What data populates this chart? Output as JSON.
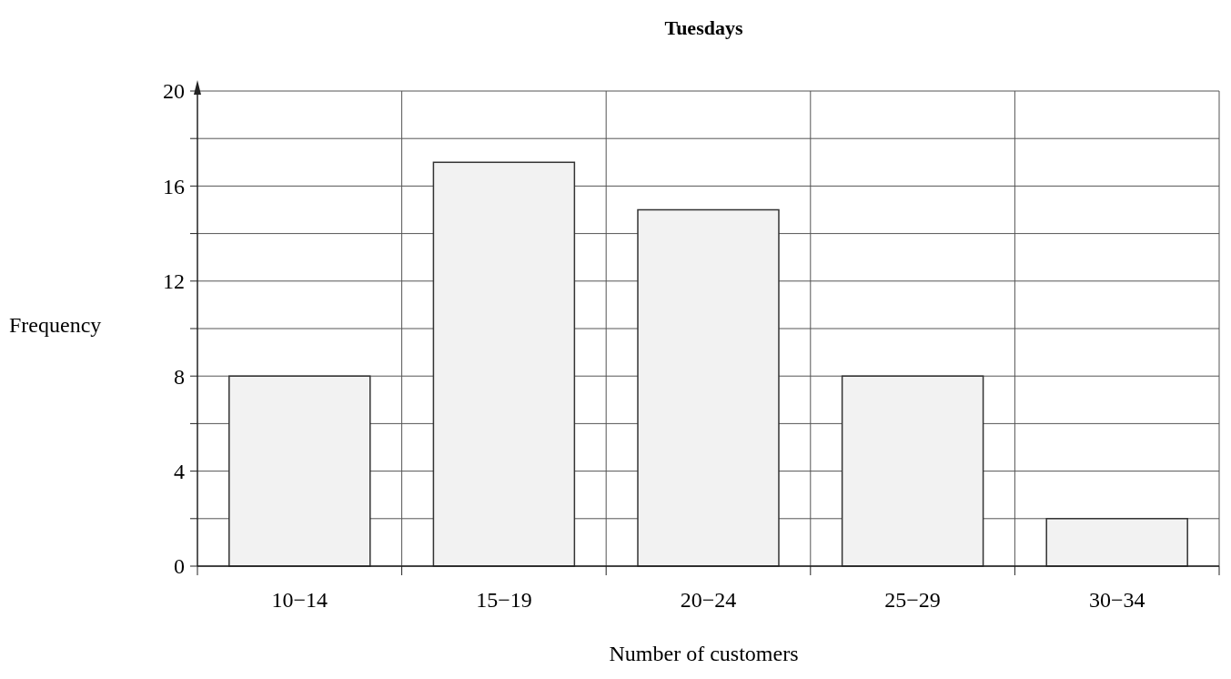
{
  "chart_data": {
    "type": "bar",
    "title": "Tuesdays",
    "xlabel": "Number of customers",
    "ylabel": "Frequency",
    "categories": [
      "10−14",
      "15−19",
      "20−24",
      "25−29",
      "30−34"
    ],
    "values": [
      8,
      17,
      15,
      8,
      2
    ],
    "color": "#f2f2f2",
    "ylim": [
      0,
      20
    ],
    "yticks": [
      0,
      {
        "value": 2,
        "label": null
      },
      4,
      {
        "value": 6,
        "label": null
      },
      8,
      {
        "value": 10,
        "label": null
      },
      12,
      {
        "value": 14,
        "label": null
      },
      16,
      {
        "value": 18,
        "label": null
      },
      20
    ],
    "grid": true
  }
}
